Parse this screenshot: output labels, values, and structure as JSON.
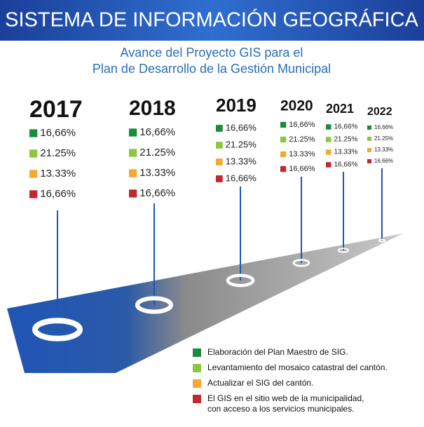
{
  "header": {
    "title": "SISTEMA DE INFORMACIÓN GEOGRÁFICA"
  },
  "subtitle": [
    "Avance del Proyecto GIS para el",
    "Plan de Desarrollo de la Gestión Municipal"
  ],
  "years": [
    {
      "year": "2017",
      "items": [
        "16,66%",
        "21.25%",
        "13.33%",
        "16,66%"
      ]
    },
    {
      "year": "2018",
      "items": [
        "16,66%",
        "21.25%",
        "13.33%",
        "16,66%"
      ]
    },
    {
      "year": "2019",
      "items": [
        "16,66%",
        "21.25%",
        "13.33%",
        "16,66%"
      ]
    },
    {
      "year": "2020",
      "items": [
        "16,66%",
        "21.25%",
        "13.33%",
        "16,66%"
      ]
    },
    {
      "year": "2021",
      "items": [
        "16,66%",
        "21.25%",
        "13.33%",
        "16,66%"
      ]
    },
    {
      "year": "2022",
      "items": [
        "16,66%",
        "21.25%",
        "13.33%",
        "16,66%"
      ]
    }
  ],
  "legend": [
    {
      "color": "#1a8a3c",
      "label": [
        "Elaboración del Plan Maestro de SIG."
      ]
    },
    {
      "color": "#8dc63f",
      "label": [
        "Levantamiento del mosaico catastral del cantón."
      ]
    },
    {
      "color": "#f7a833",
      "label": [
        "Actualizar el SIG del cantón."
      ]
    },
    {
      "color": "#c1272d",
      "label": [
        "El GIS en el sitio web de la municipalidad,",
        "con acceso a los servicios municipales."
      ]
    }
  ]
}
